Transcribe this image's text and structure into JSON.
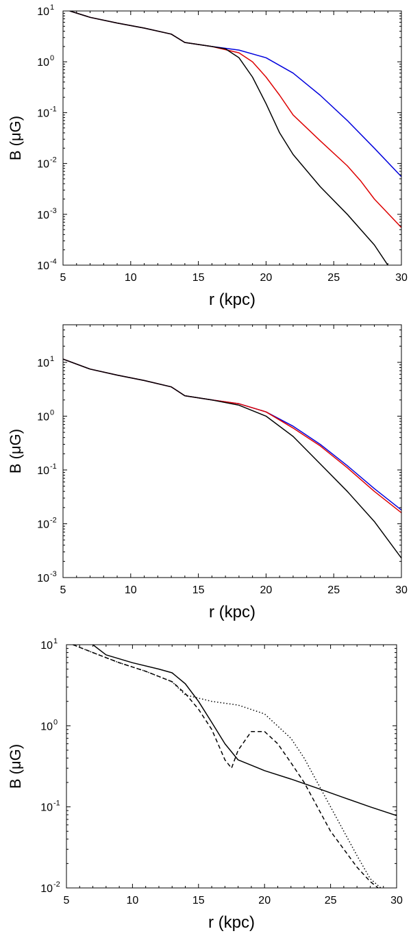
{
  "chart_data": [
    {
      "type": "line",
      "xlabel": "r (kpc)",
      "ylabel": "B (μG)",
      "xlim": [
        5,
        30
      ],
      "ylim": [
        0.0001,
        10
      ],
      "yscale": "log",
      "xticks": [
        "5",
        "10",
        "15",
        "20",
        "25",
        "30"
      ],
      "yticks": [
        {
          "base": "10",
          "exp": "-4"
        },
        {
          "base": "10",
          "exp": "-3"
        },
        {
          "base": "10",
          "exp": "-2"
        },
        {
          "base": "10",
          "exp": "-1"
        },
        {
          "base": "10",
          "exp": "0"
        },
        {
          "base": "10",
          "exp": "1"
        }
      ],
      "series": [
        {
          "color": "#0000dd",
          "dash": "",
          "points": [
            [
              5.5,
              10
            ],
            [
              7,
              7.5
            ],
            [
              9,
              5.8
            ],
            [
              11,
              4.6
            ],
            [
              13,
              3.5
            ],
            [
              14,
              2.4
            ],
            [
              16,
              2.0
            ],
            [
              18,
              1.7
            ],
            [
              20,
              1.2
            ],
            [
              22,
              0.6
            ],
            [
              24,
              0.22
            ],
            [
              26,
              0.07
            ],
            [
              28,
              0.02
            ],
            [
              30,
              0.0055
            ]
          ]
        },
        {
          "color": "#dd0000",
          "dash": "",
          "points": [
            [
              5.5,
              10
            ],
            [
              7,
              7.5
            ],
            [
              9,
              5.8
            ],
            [
              11,
              4.6
            ],
            [
              13,
              3.5
            ],
            [
              14,
              2.4
            ],
            [
              16,
              2.0
            ],
            [
              18,
              1.5
            ],
            [
              19,
              1.0
            ],
            [
              20,
              0.5
            ],
            [
              21,
              0.22
            ],
            [
              22,
              0.09
            ],
            [
              24,
              0.028
            ],
            [
              26,
              0.009
            ],
            [
              27,
              0.0045
            ],
            [
              28,
              0.002
            ],
            [
              30,
              0.00055
            ]
          ]
        },
        {
          "color": "#000000",
          "dash": "",
          "points": [
            [
              5.5,
              10
            ],
            [
              7,
              7.5
            ],
            [
              9,
              5.8
            ],
            [
              11,
              4.6
            ],
            [
              13,
              3.5
            ],
            [
              14,
              2.4
            ],
            [
              16,
              2.0
            ],
            [
              17,
              1.8
            ],
            [
              18,
              1.2
            ],
            [
              19,
              0.5
            ],
            [
              20,
              0.15
            ],
            [
              21,
              0.04
            ],
            [
              22,
              0.015
            ],
            [
              24,
              0.0035
            ],
            [
              26,
              0.001
            ],
            [
              27,
              0.0005
            ],
            [
              28,
              0.00025
            ],
            [
              29,
              0.0001
            ]
          ]
        }
      ]
    },
    {
      "type": "line",
      "xlabel": "r (kpc)",
      "ylabel": "B (μG)",
      "xlim": [
        5,
        30
      ],
      "ylim": [
        0.001,
        50
      ],
      "yscale": "log",
      "xticks": [
        "5",
        "10",
        "15",
        "20",
        "25",
        "30"
      ],
      "yticks": [
        {
          "base": "10",
          "exp": "-3"
        },
        {
          "base": "10",
          "exp": "-2"
        },
        {
          "base": "10",
          "exp": "-1"
        },
        {
          "base": "10",
          "exp": "0"
        },
        {
          "base": "10",
          "exp": "1"
        }
      ],
      "series": [
        {
          "color": "#0000dd",
          "dash": "",
          "points": [
            [
              5,
              11.5
            ],
            [
              7,
              7.5
            ],
            [
              9,
              5.8
            ],
            [
              11,
              4.6
            ],
            [
              13,
              3.5
            ],
            [
              14,
              2.4
            ],
            [
              16,
              2.0
            ],
            [
              18,
              1.7
            ],
            [
              20,
              1.2
            ],
            [
              22,
              0.65
            ],
            [
              24,
              0.3
            ],
            [
              26,
              0.12
            ],
            [
              28,
              0.045
            ],
            [
              30,
              0.018
            ]
          ]
        },
        {
          "color": "#dd0000",
          "dash": "",
          "points": [
            [
              5,
              11.5
            ],
            [
              7,
              7.5
            ],
            [
              9,
              5.8
            ],
            [
              11,
              4.6
            ],
            [
              13,
              3.5
            ],
            [
              14,
              2.4
            ],
            [
              16,
              2.0
            ],
            [
              18,
              1.7
            ],
            [
              20,
              1.2
            ],
            [
              22,
              0.6
            ],
            [
              24,
              0.28
            ],
            [
              26,
              0.11
            ],
            [
              28,
              0.04
            ],
            [
              30,
              0.016
            ]
          ]
        },
        {
          "color": "#000000",
          "dash": "",
          "points": [
            [
              5,
              11.5
            ],
            [
              7,
              7.5
            ],
            [
              9,
              5.8
            ],
            [
              11,
              4.6
            ],
            [
              13,
              3.5
            ],
            [
              14,
              2.4
            ],
            [
              16,
              2.0
            ],
            [
              18,
              1.6
            ],
            [
              20,
              1.0
            ],
            [
              22,
              0.42
            ],
            [
              24,
              0.13
            ],
            [
              26,
              0.04
            ],
            [
              28,
              0.011
            ],
            [
              30,
              0.0023
            ]
          ]
        }
      ]
    },
    {
      "type": "line",
      "xlabel": "r (kpc)",
      "ylabel": "B (μG)",
      "xlim": [
        5,
        30
      ],
      "ylim": [
        0.01,
        10
      ],
      "yscale": "log",
      "xticks": [
        "5",
        "10",
        "15",
        "20",
        "25",
        "30"
      ],
      "yticks": [
        {
          "base": "10",
          "exp": "-2"
        },
        {
          "base": "10",
          "exp": "-1"
        },
        {
          "base": "10",
          "exp": "0"
        },
        {
          "base": "10",
          "exp": "1"
        }
      ],
      "series": [
        {
          "color": "#000000",
          "dash": "",
          "points": [
            [
              7,
              10
            ],
            [
              8,
              7.5
            ],
            [
              10,
              6.0
            ],
            [
              12,
              5.0
            ],
            [
              13,
              4.5
            ],
            [
              14,
              3.3
            ],
            [
              15,
              2.0
            ],
            [
              16,
              1.1
            ],
            [
              17,
              0.6
            ],
            [
              18,
              0.38
            ],
            [
              20,
              0.28
            ],
            [
              22,
              0.22
            ],
            [
              24,
              0.17
            ],
            [
              26,
              0.13
            ],
            [
              28,
              0.1
            ],
            [
              30,
              0.078
            ]
          ]
        },
        {
          "color": "#000000",
          "dash": "6,4",
          "points": [
            [
              5.5,
              10
            ],
            [
              7,
              8.0
            ],
            [
              9,
              6.0
            ],
            [
              11,
              4.7
            ],
            [
              13,
              3.5
            ],
            [
              14,
              2.5
            ],
            [
              15,
              1.6
            ],
            [
              16,
              0.9
            ],
            [
              17,
              0.38
            ],
            [
              17.5,
              0.3
            ],
            [
              18,
              0.5
            ],
            [
              19,
              0.85
            ],
            [
              20,
              0.85
            ],
            [
              21,
              0.6
            ],
            [
              22,
              0.35
            ],
            [
              23,
              0.2
            ],
            [
              24,
              0.1
            ],
            [
              25,
              0.05
            ],
            [
              26,
              0.03
            ],
            [
              27,
              0.018
            ],
            [
              28,
              0.012
            ],
            [
              28.6,
              0.01
            ]
          ]
        },
        {
          "color": "#000000",
          "dash": "1.5,3",
          "points": [
            [
              5.5,
              10
            ],
            [
              7,
              8.0
            ],
            [
              9,
              6.0
            ],
            [
              11,
              4.7
            ],
            [
              13,
              3.5
            ],
            [
              14,
              2.4
            ],
            [
              16,
              2.0
            ],
            [
              18,
              1.8
            ],
            [
              20,
              1.4
            ],
            [
              22,
              0.7
            ],
            [
              23,
              0.4
            ],
            [
              24,
              0.2
            ],
            [
              25,
              0.1
            ],
            [
              26,
              0.05
            ],
            [
              27,
              0.025
            ],
            [
              28,
              0.013
            ],
            [
              28.8,
              0.01
            ]
          ]
        }
      ]
    }
  ]
}
